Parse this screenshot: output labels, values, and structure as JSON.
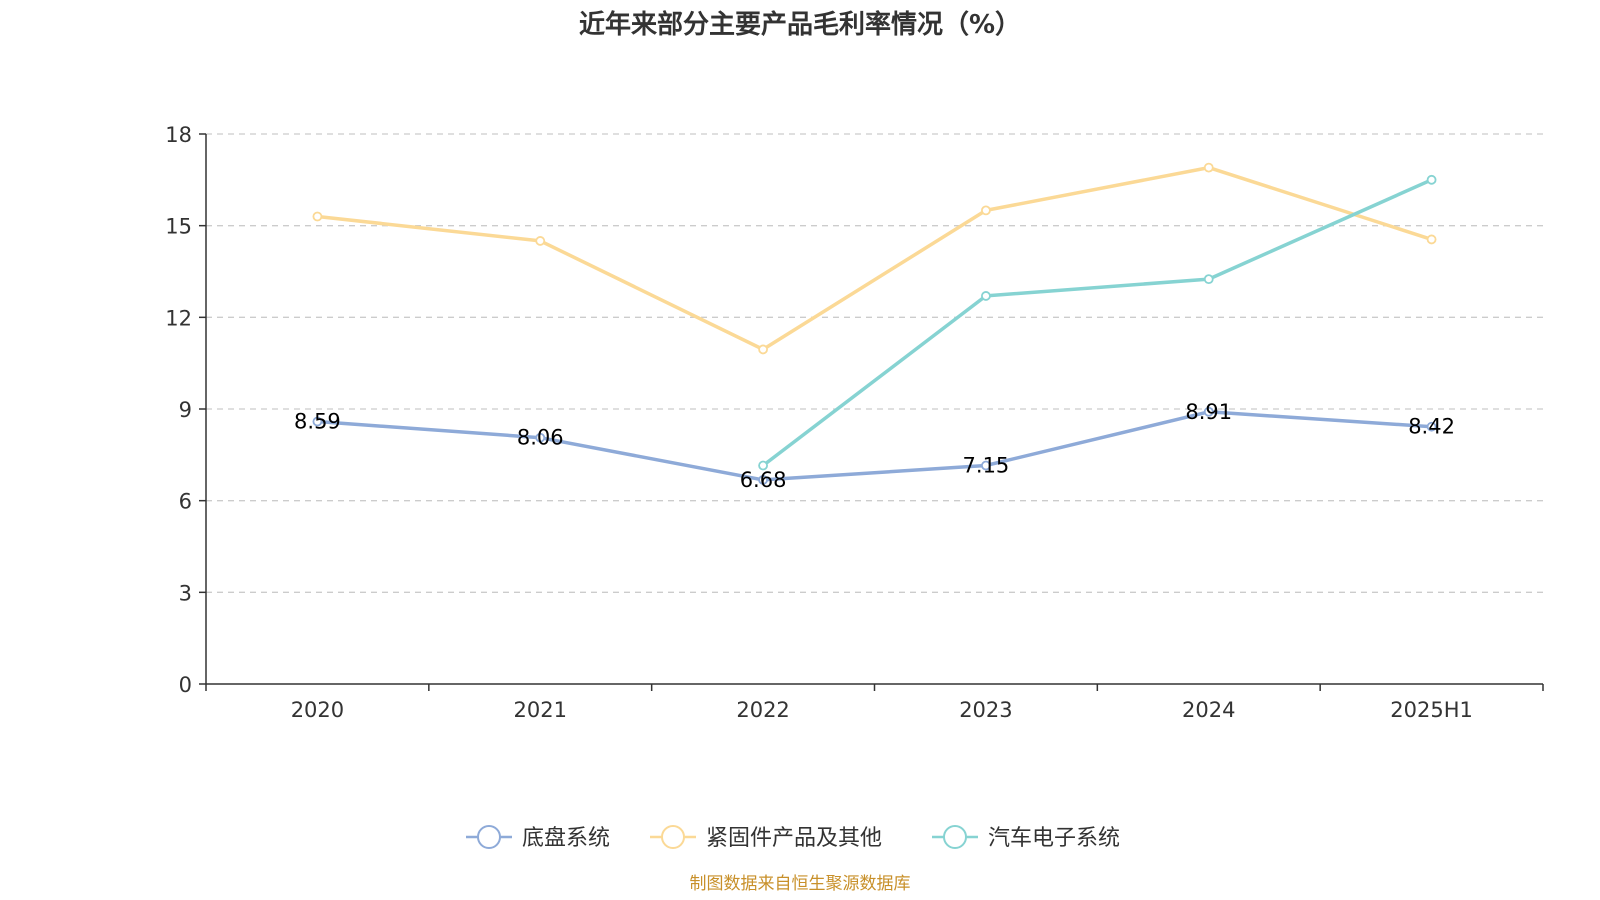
{
  "chart_data": {
    "type": "line",
    "title": "近年来部分主要产品毛利率情况（%）",
    "categories": [
      "2020",
      "2021",
      "2022",
      "2023",
      "2024",
      "2025H1"
    ],
    "ylim": [
      0,
      18
    ],
    "yticks": [
      0,
      3,
      6,
      9,
      12,
      15,
      18
    ],
    "grid": true,
    "legend_position": "bottom",
    "series": [
      {
        "name": "底盘系统",
        "color": "#8eaad8",
        "values": [
          8.59,
          8.06,
          6.68,
          7.15,
          8.91,
          8.42
        ],
        "labels": [
          "8.59",
          "8.06",
          "6.68",
          "7.15",
          "8.91",
          "8.42"
        ]
      },
      {
        "name": "紧固件产品及其他",
        "color": "#fbd996",
        "values": [
          15.3,
          14.5,
          10.95,
          15.5,
          16.9,
          14.55
        ]
      },
      {
        "name": "汽车电子系统",
        "color": "#86d3d2",
        "values": [
          null,
          null,
          7.15,
          12.7,
          13.25,
          16.5
        ]
      }
    ],
    "source": "制图数据来自恒生聚源数据库"
  }
}
